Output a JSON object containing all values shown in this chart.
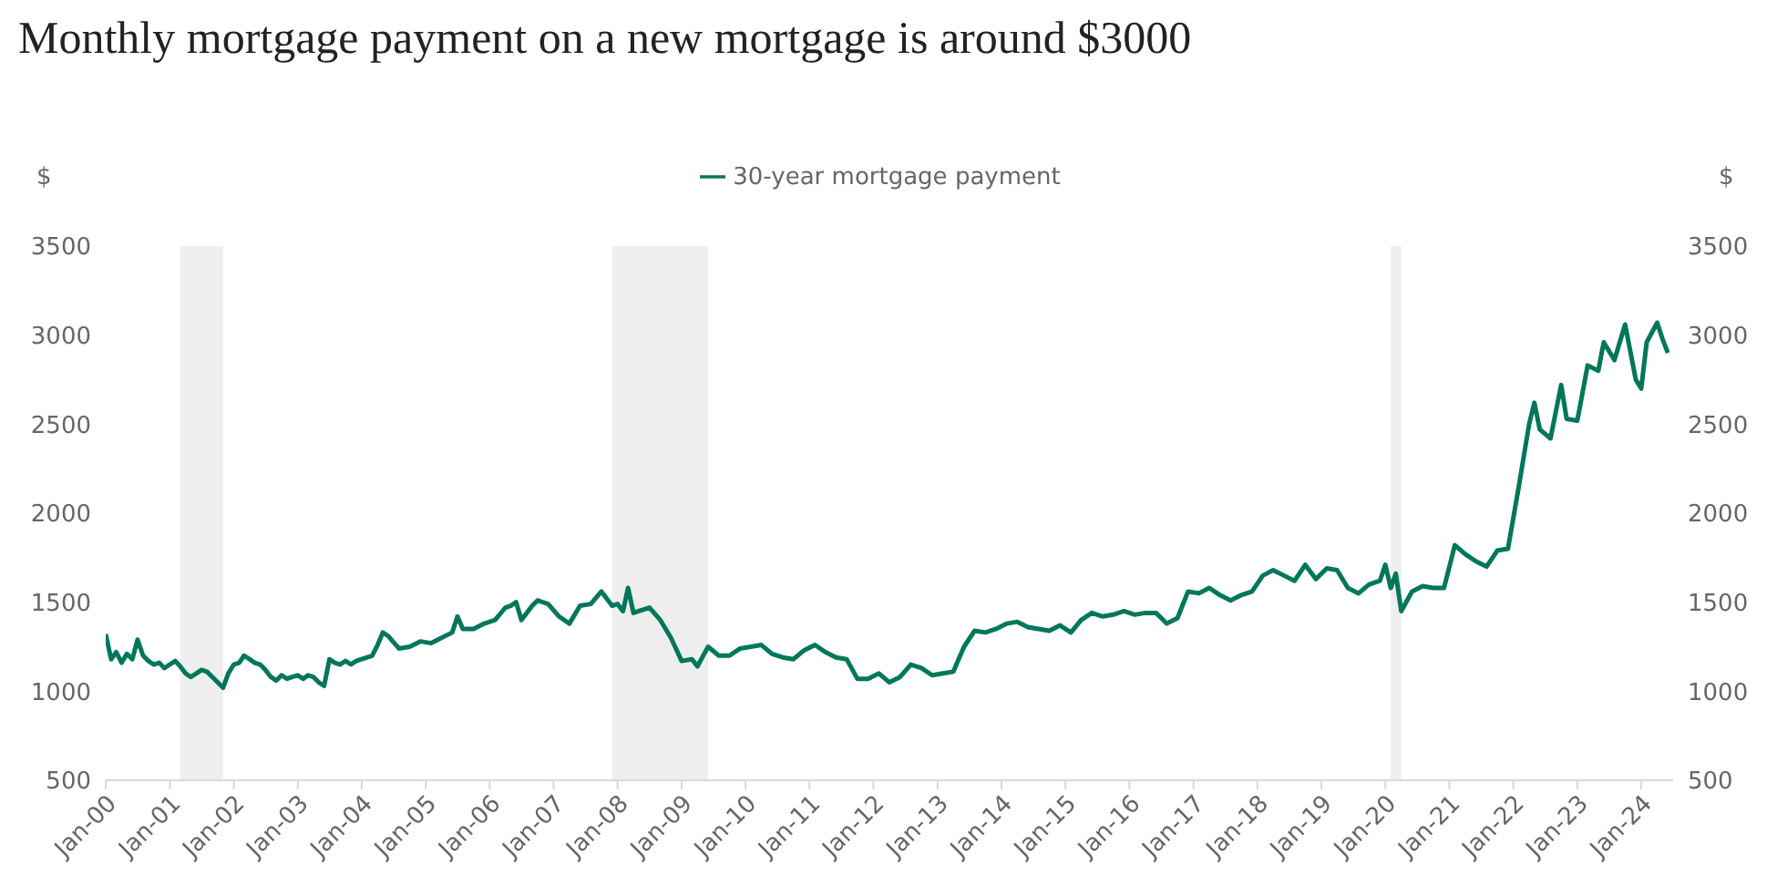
{
  "chart_data": {
    "type": "line",
    "title": "Monthly mortgage payment on a new mortgage is around $3000",
    "ylabel": "$",
    "y2label": "$",
    "x": [
      "2000-01",
      "2000-02",
      "2000-03",
      "2000-04",
      "2000-05",
      "2000-06",
      "2000-07",
      "2000-08",
      "2000-09",
      "2000-10",
      "2000-11",
      "2000-12",
      "2001-01",
      "2001-02",
      "2001-03",
      "2001-04",
      "2001-05",
      "2001-06",
      "2001-07",
      "2001-08",
      "2001-09",
      "2001-10",
      "2001-11",
      "2001-12",
      "2002-01",
      "2002-02",
      "2002-03",
      "2002-04",
      "2002-05",
      "2002-06",
      "2002-07",
      "2002-08",
      "2002-09",
      "2002-10",
      "2002-11",
      "2002-12",
      "2003-01",
      "2003-02",
      "2003-03",
      "2003-04",
      "2003-05",
      "2003-06",
      "2003-07",
      "2003-08",
      "2003-09",
      "2003-10",
      "2003-11",
      "2003-12",
      "2004-01",
      "2004-03",
      "2004-04",
      "2004-05",
      "2004-06",
      "2004-08",
      "2004-10",
      "2004-12",
      "2005-02",
      "2005-04",
      "2005-06",
      "2005-07",
      "2005-08",
      "2005-10",
      "2005-12",
      "2006-02",
      "2006-04",
      "2006-05",
      "2006-06",
      "2006-07",
      "2006-09",
      "2006-10",
      "2006-12",
      "2007-02",
      "2007-04",
      "2007-06",
      "2007-08",
      "2007-10",
      "2007-12",
      "2008-01",
      "2008-02",
      "2008-03",
      "2008-04",
      "2008-05",
      "2008-07",
      "2008-09",
      "2008-11",
      "2009-01",
      "2009-03",
      "2009-04",
      "2009-06",
      "2009-08",
      "2009-10",
      "2009-12",
      "2010-02",
      "2010-04",
      "2010-06",
      "2010-08",
      "2010-10",
      "2010-12",
      "2011-02",
      "2011-04",
      "2011-06",
      "2011-08",
      "2011-10",
      "2011-12",
      "2012-02",
      "2012-04",
      "2012-06",
      "2012-08",
      "2012-10",
      "2012-12",
      "2013-02",
      "2013-04",
      "2013-06",
      "2013-08",
      "2013-10",
      "2013-12",
      "2014-02",
      "2014-04",
      "2014-06",
      "2014-08",
      "2014-10",
      "2014-12",
      "2015-02",
      "2015-04",
      "2015-06",
      "2015-08",
      "2015-10",
      "2015-12",
      "2016-02",
      "2016-04",
      "2016-06",
      "2016-08",
      "2016-10",
      "2016-12",
      "2017-02",
      "2017-04",
      "2017-06",
      "2017-08",
      "2017-10",
      "2017-12",
      "2018-02",
      "2018-04",
      "2018-06",
      "2018-08",
      "2018-10",
      "2018-12",
      "2019-02",
      "2019-04",
      "2019-06",
      "2019-08",
      "2019-10",
      "2019-12",
      "2020-01",
      "2020-02",
      "2020-03",
      "2020-04",
      "2020-06",
      "2020-08",
      "2020-10",
      "2020-12",
      "2021-02",
      "2021-04",
      "2021-06",
      "2021-08",
      "2021-10",
      "2021-12",
      "2022-02",
      "2022-04",
      "2022-05",
      "2022-06",
      "2022-08",
      "2022-10",
      "2022-11",
      "2023-01",
      "2023-03",
      "2023-05",
      "2023-06",
      "2023-08",
      "2023-10",
      "2023-12",
      "2024-01",
      "2024-02",
      "2024-04",
      "2024-05",
      "2024-06"
    ],
    "series": [
      {
        "name": "30-year mortgage payment",
        "color": "#00775a",
        "values": [
          1320,
          1180,
          1220,
          1160,
          1210,
          1180,
          1290,
          1200,
          1170,
          1150,
          1160,
          1130,
          1150,
          1170,
          1140,
          1100,
          1080,
          1100,
          1120,
          1110,
          1080,
          1050,
          1020,
          1100,
          1150,
          1160,
          1200,
          1180,
          1160,
          1150,
          1120,
          1080,
          1060,
          1090,
          1070,
          1080,
          1090,
          1070,
          1090,
          1080,
          1050,
          1030,
          1180,
          1160,
          1150,
          1170,
          1150,
          1170,
          1180,
          1200,
          1260,
          1330,
          1310,
          1240,
          1250,
          1280,
          1270,
          1300,
          1330,
          1420,
          1350,
          1350,
          1380,
          1400,
          1470,
          1480,
          1500,
          1400,
          1480,
          1510,
          1490,
          1420,
          1380,
          1480,
          1490,
          1560,
          1480,
          1490,
          1450,
          1580,
          1440,
          1450,
          1470,
          1400,
          1300,
          1170,
          1180,
          1140,
          1250,
          1200,
          1200,
          1240,
          1250,
          1260,
          1210,
          1190,
          1180,
          1230,
          1260,
          1220,
          1190,
          1180,
          1070,
          1070,
          1100,
          1050,
          1080,
          1150,
          1130,
          1090,
          1100,
          1110,
          1250,
          1340,
          1330,
          1350,
          1380,
          1390,
          1360,
          1350,
          1340,
          1370,
          1330,
          1400,
          1440,
          1420,
          1430,
          1450,
          1430,
          1440,
          1440,
          1380,
          1410,
          1560,
          1550,
          1580,
          1540,
          1510,
          1540,
          1560,
          1650,
          1680,
          1650,
          1620,
          1710,
          1630,
          1690,
          1680,
          1580,
          1550,
          1600,
          1620,
          1710,
          1580,
          1660,
          1450,
          1560,
          1590,
          1580,
          1580,
          1820,
          1770,
          1730,
          1700,
          1790,
          1800,
          2150,
          2500,
          2620,
          2470,
          2420,
          2720,
          2530,
          2520,
          2830,
          2800,
          2960,
          2860,
          3060,
          2750,
          2700,
          2960,
          3070,
          2980,
          2900
        ]
      }
    ],
    "xlim": [
      "2000-01",
      "2024-07"
    ],
    "xticks": [
      {
        "value": "2000-01",
        "label": "Jan-00"
      },
      {
        "value": "2001-01",
        "label": "Jan-01"
      },
      {
        "value": "2002-01",
        "label": "Jan-02"
      },
      {
        "value": "2003-01",
        "label": "Jan-03"
      },
      {
        "value": "2004-01",
        "label": "Jan-04"
      },
      {
        "value": "2005-01",
        "label": "Jan-05"
      },
      {
        "value": "2006-01",
        "label": "Jan-06"
      },
      {
        "value": "2007-01",
        "label": "Jan-07"
      },
      {
        "value": "2008-01",
        "label": "Jan-08"
      },
      {
        "value": "2009-01",
        "label": "Jan-09"
      },
      {
        "value": "2010-01",
        "label": "Jan-10"
      },
      {
        "value": "2011-01",
        "label": "Jan-11"
      },
      {
        "value": "2012-01",
        "label": "Jan-12"
      },
      {
        "value": "2013-01",
        "label": "Jan-13"
      },
      {
        "value": "2014-01",
        "label": "Jan-14"
      },
      {
        "value": "2015-01",
        "label": "Jan-15"
      },
      {
        "value": "2016-01",
        "label": "Jan-16"
      },
      {
        "value": "2017-01",
        "label": "Jan-17"
      },
      {
        "value": "2018-01",
        "label": "Jan-18"
      },
      {
        "value": "2019-01",
        "label": "Jan-19"
      },
      {
        "value": "2020-01",
        "label": "Jan-20"
      },
      {
        "value": "2021-01",
        "label": "Jan-21"
      },
      {
        "value": "2022-01",
        "label": "Jan-22"
      },
      {
        "value": "2023-01",
        "label": "Jan-23"
      },
      {
        "value": "2024-01",
        "label": "Jan-24"
      }
    ],
    "ylim": [
      500,
      3500
    ],
    "yticks": [
      500,
      1000,
      1500,
      2000,
      2500,
      3000,
      3500
    ],
    "y2lim": [
      500,
      3500
    ],
    "y2ticks": [
      500,
      1000,
      1500,
      2000,
      2500,
      3000,
      3500
    ],
    "bands": [
      {
        "axis": "x",
        "from": "2001-03",
        "to": "2001-11",
        "color": "#eeeeee"
      },
      {
        "axis": "x",
        "from": "2007-12",
        "to": "2009-06",
        "color": "#eeeeee"
      },
      {
        "axis": "x",
        "from": "2020-02",
        "to": "2020-04",
        "color": "#eeeeee"
      }
    ],
    "legend": "top",
    "marker": "none",
    "line_style": "solid"
  }
}
